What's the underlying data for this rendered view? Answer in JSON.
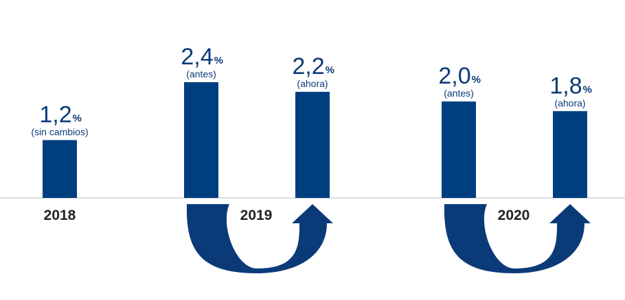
{
  "chart_data": {
    "type": "bar",
    "unit": "%",
    "ylim": [
      0,
      3.0
    ],
    "grid": false,
    "colors": {
      "bar": "#003f7f",
      "arrow": "#0b3a78",
      "axis": "#c8c8c8",
      "label": "#0b3a78"
    },
    "bars": [
      {
        "group": "2018",
        "value": 1.2,
        "value_label": "1,2",
        "note": "(sin cambios)"
      },
      {
        "group": "2019",
        "value": 2.4,
        "value_label": "2,4",
        "note": "(antes)"
      },
      {
        "group": "2019",
        "value": 2.2,
        "value_label": "2,2",
        "note": "(ahora)"
      },
      {
        "group": "2020",
        "value": 2.0,
        "value_label": "2,0",
        "note": "(antes)"
      },
      {
        "group": "2020",
        "value": 1.8,
        "value_label": "1,8",
        "note": "(ahora)"
      }
    ],
    "groups": [
      "2018",
      "2019",
      "2020"
    ],
    "arrows": [
      {
        "group": "2019",
        "from": "antes",
        "to": "ahora"
      },
      {
        "group": "2020",
        "from": "antes",
        "to": "ahora"
      }
    ]
  }
}
